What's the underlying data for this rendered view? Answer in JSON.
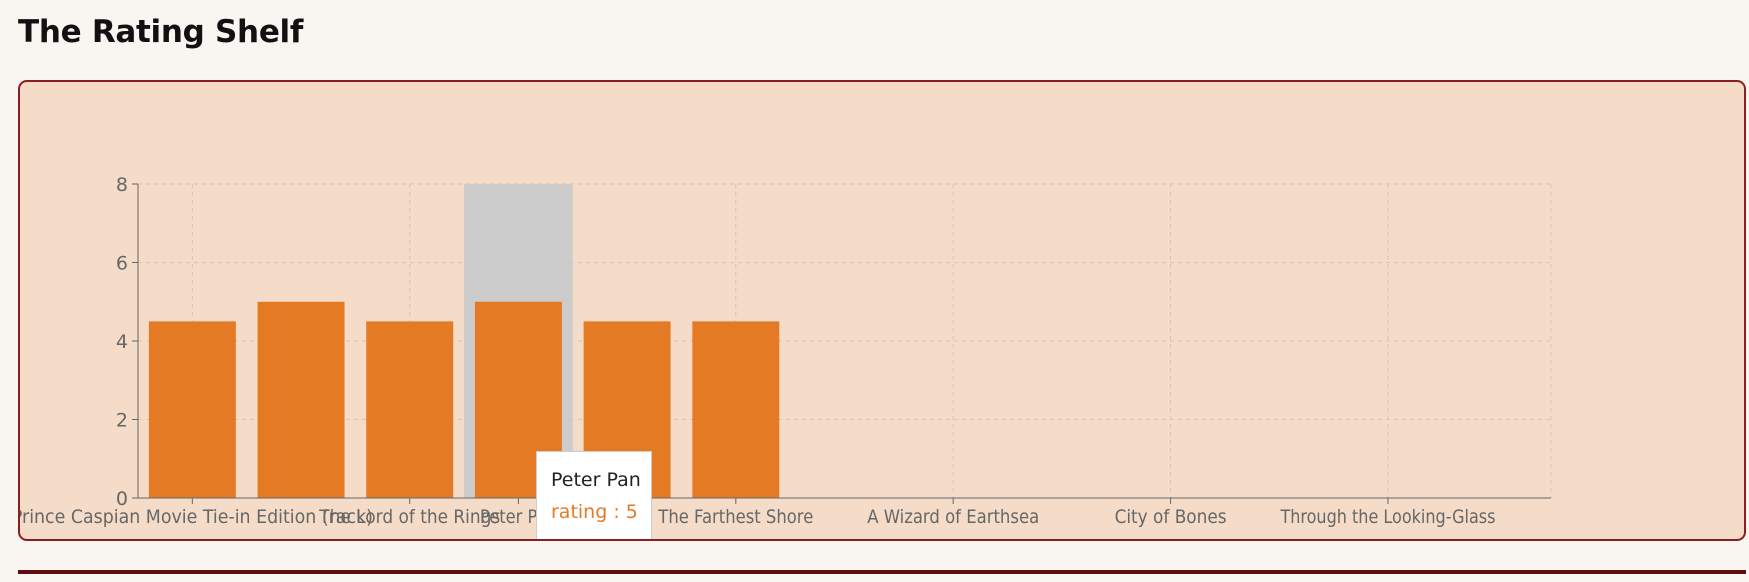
{
  "page": {
    "title": "The Rating Shelf"
  },
  "colors": {
    "page_background": "#f9f6f2",
    "card_background": "#f4dcc8",
    "card_border": "#8b1e1e",
    "bar": "#e57a24",
    "hover_cursor": "#cccccc",
    "grid": "#d4c6b6",
    "axis": "#666666",
    "rule": "#5c0d0d"
  },
  "chart_data": {
    "type": "bar",
    "categories": [
      "Prince Caspian Movie Tie-in Edition (rack)",
      "",
      "The Lord of the Rings",
      "Peter Pan",
      "",
      "The Farthest Shore",
      "",
      "A Wizard of Earthsea",
      "",
      "City of Bones",
      "",
      "Through the Looking-Glass",
      ""
    ],
    "values": [
      4.5,
      5,
      4.5,
      5,
      4.5,
      4.5,
      null,
      null,
      null,
      null,
      null,
      null,
      null
    ],
    "series": [
      {
        "name": "rating",
        "values": [
          4.5,
          5,
          4.5,
          5,
          4.5,
          4.5,
          null,
          null,
          null,
          null,
          null,
          null,
          null
        ]
      }
    ],
    "title": "",
    "xlabel": "",
    "ylabel": "",
    "ylim": [
      0,
      8
    ],
    "yticks": [
      0,
      2,
      4,
      6,
      8
    ],
    "grid": true,
    "legend": "none",
    "highlighted_index": 3
  },
  "tooltip": {
    "title": "Peter Pan",
    "series_name": "rating",
    "separator": " : ",
    "value": "5"
  }
}
